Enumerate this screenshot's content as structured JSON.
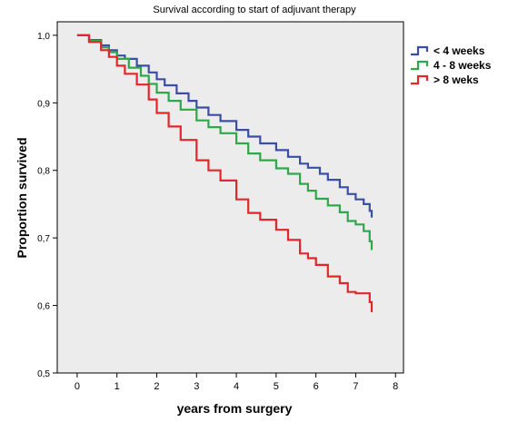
{
  "chart_data": {
    "type": "line",
    "title": "Survival according to start of adjuvant therapy",
    "xlabel": "years from surgery",
    "ylabel": "Proportion survived",
    "xlim": [
      -0.5,
      8.2
    ],
    "ylim": [
      0.5,
      1.02
    ],
    "xticks": [
      0,
      1,
      2,
      3,
      4,
      5,
      6,
      7,
      8
    ],
    "yticks": [
      0.5,
      0.6,
      0.7,
      0.8,
      0.9,
      1.0
    ],
    "ytick_labels": [
      "0,5",
      "0,6",
      "0,7",
      "0,8",
      "0,9",
      "1,0"
    ],
    "grid": false,
    "legend_position": "top-right outside",
    "series": [
      {
        "name": "< 4 weeks",
        "color": "#3a4ea6",
        "x": [
          0,
          0.3,
          0.6,
          0.8,
          1.0,
          1.2,
          1.5,
          1.8,
          2.0,
          2.2,
          2.5,
          2.8,
          3.0,
          3.3,
          3.6,
          4.0,
          4.3,
          4.6,
          5.0,
          5.3,
          5.6,
          5.8,
          6.1,
          6.3,
          6.6,
          6.8,
          7.0,
          7.2,
          7.35,
          7.4
        ],
        "y": [
          1.0,
          0.993,
          0.985,
          0.978,
          0.97,
          0.965,
          0.955,
          0.945,
          0.935,
          0.926,
          0.914,
          0.903,
          0.893,
          0.882,
          0.873,
          0.86,
          0.85,
          0.84,
          0.83,
          0.82,
          0.81,
          0.804,
          0.795,
          0.786,
          0.775,
          0.765,
          0.757,
          0.75,
          0.74,
          0.73
        ]
      },
      {
        "name": "4 - 8 weeks",
        "color": "#2ea84a",
        "x": [
          0,
          0.3,
          0.6,
          0.8,
          1.0,
          1.3,
          1.6,
          1.8,
          2.0,
          2.3,
          2.6,
          3.0,
          3.3,
          3.6,
          4.0,
          4.3,
          4.6,
          5.0,
          5.3,
          5.6,
          5.8,
          6.0,
          6.3,
          6.6,
          6.8,
          7.0,
          7.2,
          7.35,
          7.4
        ],
        "y": [
          1.0,
          0.992,
          0.982,
          0.975,
          0.965,
          0.952,
          0.94,
          0.928,
          0.915,
          0.903,
          0.89,
          0.874,
          0.864,
          0.855,
          0.84,
          0.825,
          0.815,
          0.803,
          0.795,
          0.78,
          0.77,
          0.758,
          0.748,
          0.738,
          0.725,
          0.72,
          0.71,
          0.695,
          0.682
        ]
      },
      {
        "name": "> 8 weks",
        "color": "#e2262b",
        "x": [
          0,
          0.3,
          0.6,
          0.8,
          1.0,
          1.2,
          1.5,
          1.8,
          2.0,
          2.3,
          2.6,
          3.0,
          3.3,
          3.6,
          4.0,
          4.3,
          4.6,
          5.0,
          5.3,
          5.6,
          5.8,
          6.0,
          6.3,
          6.6,
          6.8,
          7.0,
          7.2,
          7.35,
          7.4
        ],
        "y": [
          1.0,
          0.99,
          0.978,
          0.968,
          0.955,
          0.943,
          0.927,
          0.905,
          0.885,
          0.865,
          0.845,
          0.815,
          0.8,
          0.785,
          0.757,
          0.737,
          0.727,
          0.712,
          0.697,
          0.677,
          0.67,
          0.66,
          0.643,
          0.633,
          0.62,
          0.618,
          0.618,
          0.605,
          0.59
        ]
      }
    ]
  }
}
